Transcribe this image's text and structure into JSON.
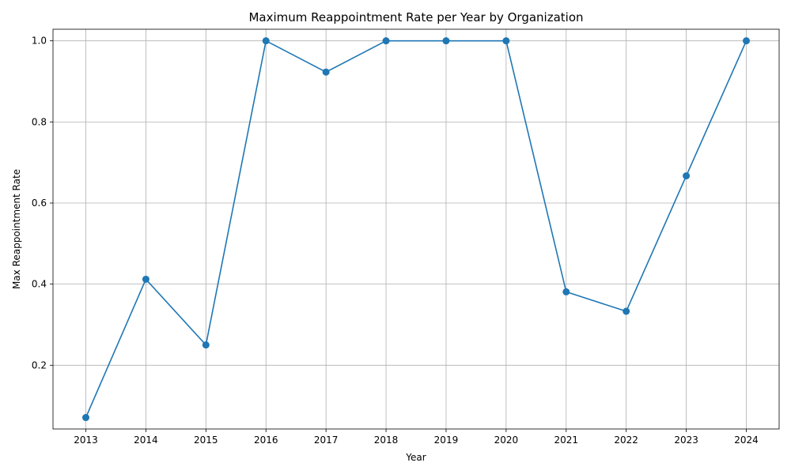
{
  "chart_data": {
    "type": "line",
    "title": "Maximum Reappointment Rate per Year by Organization",
    "xlabel": "Year",
    "ylabel": "Max Reappointment Rate",
    "x": [
      "2013",
      "2014",
      "2015",
      "2016",
      "2017",
      "2018",
      "2019",
      "2020",
      "2021",
      "2022",
      "2023",
      "2024"
    ],
    "series": [
      {
        "values": [
          0.071,
          0.412,
          0.25,
          1.0,
          0.923,
          1.0,
          1.0,
          1.0,
          0.381,
          0.333,
          0.667,
          1.0
        ],
        "color": "#1f77b4",
        "marker": "circle"
      }
    ],
    "ylim": [
      0.0428,
      1.0286
    ],
    "yticks": [
      "0.2",
      "0.4",
      "0.6",
      "0.8",
      "1.0"
    ],
    "grid": true,
    "legend": "none"
  }
}
